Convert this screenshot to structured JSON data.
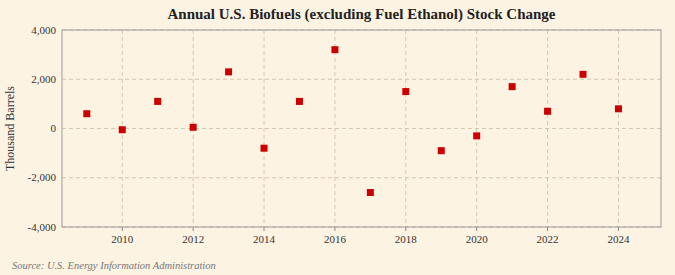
{
  "chart_data": {
    "type": "scatter",
    "title": "Annual U.S. Biofuels (excluding Fuel Ethanol) Stock Change",
    "ylabel": "Thousand Barrels",
    "annotations": [
      "Source: U.S. Energy Information Administration"
    ],
    "x": [
      2009,
      2010,
      2011,
      2012,
      2013,
      2014,
      2015,
      2016,
      2017,
      2018,
      2019,
      2020,
      2021,
      2022,
      2023,
      2024
    ],
    "values": [
      600,
      -50,
      1100,
      50,
      2300,
      -800,
      1100,
      3200,
      -2600,
      1500,
      -900,
      -300,
      1700,
      700,
      2200,
      800
    ],
    "color": "#cc0000",
    "marker": "square",
    "xlim": [
      2008.3,
      2025.2
    ],
    "ylim": [
      -4000,
      4000
    ],
    "xticks": [
      2010,
      2012,
      2014,
      2016,
      2018,
      2020,
      2022,
      2024
    ],
    "yticks": [
      {
        "value": -4000,
        "label": "-4,000"
      },
      {
        "value": -2000,
        "label": "-2,000"
      },
      0,
      {
        "value": 2000,
        "label": "2,000"
      },
      {
        "value": 4000,
        "label": "4,000"
      }
    ],
    "grid": true
  }
}
